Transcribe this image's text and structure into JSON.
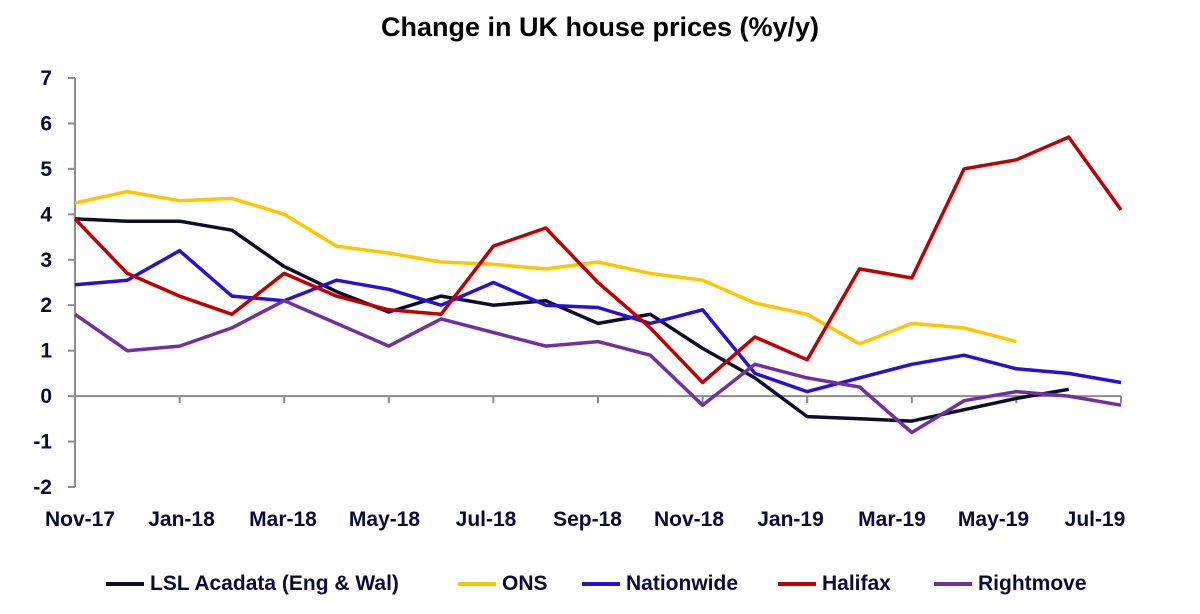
{
  "chart_data": {
    "type": "line",
    "title": "Change in UK house prices (%y/y)",
    "xlabel": "",
    "ylabel": "",
    "ylim": [
      -2,
      7
    ],
    "yticks": [
      "7",
      "6",
      "5",
      "4",
      "3",
      "2",
      "1",
      "0",
      "-1",
      "-2"
    ],
    "x_tick_labels": [
      "Nov-17",
      "Jan-18",
      "Mar-18",
      "May-18",
      "Jul-18",
      "Sep-18",
      "Nov-18",
      "Jan-19",
      "Mar-19",
      "May-19",
      "Jul-19"
    ],
    "x": [
      "Nov-17",
      "Dec-17",
      "Jan-18",
      "Feb-18",
      "Mar-18",
      "Apr-18",
      "May-18",
      "Jun-18",
      "Jul-18",
      "Aug-18",
      "Sep-18",
      "Oct-18",
      "Nov-18",
      "Dec-18",
      "Jan-19",
      "Feb-19",
      "Mar-19",
      "Apr-19",
      "May-19",
      "Jun-19",
      "Jul-19"
    ],
    "legend_position": "bottom",
    "series": [
      {
        "name": "LSL Acadata (Eng & Wal)",
        "color": "#0d0d2b",
        "values": [
          3.9,
          3.85,
          3.85,
          3.65,
          2.85,
          2.3,
          1.85,
          2.2,
          2.0,
          2.1,
          1.6,
          1.8,
          1.05,
          0.4,
          -0.45,
          -0.5,
          -0.55,
          -0.3,
          -0.05,
          0.15,
          null
        ]
      },
      {
        "name": "ONS",
        "color": "#ffc600",
        "values": [
          4.25,
          4.5,
          4.3,
          4.35,
          4.0,
          3.3,
          3.15,
          2.95,
          2.9,
          2.8,
          2.95,
          2.7,
          2.55,
          2.05,
          1.8,
          1.15,
          1.6,
          1.5,
          1.2,
          null,
          null
        ]
      },
      {
        "name": "Nationwide",
        "color": "#2a0fd6",
        "values": [
          2.45,
          2.55,
          3.2,
          2.2,
          2.1,
          2.55,
          2.35,
          2.0,
          2.5,
          2.0,
          1.95,
          1.6,
          1.9,
          0.5,
          0.1,
          0.4,
          0.7,
          0.9,
          0.6,
          0.5,
          0.3
        ]
      },
      {
        "name": "Halifax",
        "color": "#c00000",
        "values": [
          3.9,
          2.7,
          2.2,
          1.8,
          2.7,
          2.2,
          1.9,
          1.8,
          3.3,
          3.7,
          2.5,
          1.5,
          0.3,
          1.3,
          0.8,
          2.8,
          2.6,
          5.0,
          5.2,
          5.7,
          4.1
        ]
      },
      {
        "name": "Rightmove",
        "color": "#7030a0",
        "values": [
          1.8,
          1.0,
          1.1,
          1.5,
          2.1,
          1.6,
          1.1,
          1.7,
          1.4,
          1.1,
          1.2,
          0.9,
          -0.2,
          0.7,
          0.4,
          0.2,
          -0.8,
          -0.1,
          0.1,
          0.0,
          -0.2
        ]
      }
    ]
  }
}
